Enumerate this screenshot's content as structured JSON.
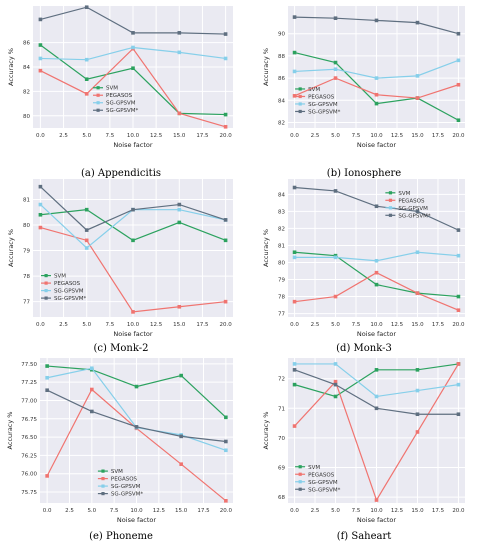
{
  "colors": {
    "SVM": "#2ca25f",
    "PEGASOS": "#f07470",
    "SG-GPSVM": "#86cfea",
    "SG-GPSVM*": "#5f6f80",
    "plot_bg": "#eaeaf2",
    "grid": "#ffffff"
  },
  "chart_data": [
    {
      "type": "line",
      "caption": "(a) Appendicitis",
      "xlabel": "Noise factor",
      "ylabel": "Accuracy %",
      "x": [
        0.0,
        5.0,
        10.0,
        15.0,
        20.0
      ],
      "xticks": [
        "0.0",
        "2.5",
        "5.0",
        "7.5",
        "10.0",
        "12.5",
        "15.0",
        "17.5",
        "20.0"
      ],
      "yticks": [
        "80",
        "82",
        "84",
        "86"
      ],
      "ylim": [
        79.0,
        89.0
      ],
      "legend": "center",
      "series": [
        {
          "name": "SVM",
          "values": [
            85.8,
            83.0,
            83.9,
            80.2,
            80.1
          ]
        },
        {
          "name": "PEGASOS",
          "values": [
            83.7,
            81.8,
            85.5,
            80.2,
            79.1
          ]
        },
        {
          "name": "SG-GPSVM",
          "values": [
            84.7,
            84.6,
            85.6,
            85.2,
            84.7
          ]
        },
        {
          "name": "SG-GPSVM*",
          "values": [
            87.9,
            88.9,
            86.8,
            86.8,
            86.7
          ]
        }
      ]
    },
    {
      "type": "line",
      "caption": "(b) Ionosphere",
      "xlabel": "Noise factor",
      "ylabel": "Accuracy %",
      "x": [
        0.0,
        5.0,
        10.0,
        15.0,
        20.0
      ],
      "xticks": [
        "0.0",
        "2.5",
        "5.0",
        "7.5",
        "10.0",
        "12.5",
        "15.0",
        "17.5",
        "20.0"
      ],
      "yticks": [
        "82",
        "84",
        "86",
        "88",
        "90"
      ],
      "ylim": [
        81.5,
        92.5
      ],
      "legend": "lower-left",
      "series": [
        {
          "name": "SVM",
          "values": [
            88.3,
            87.4,
            83.7,
            84.2,
            82.2
          ]
        },
        {
          "name": "PEGASOS",
          "values": [
            84.4,
            86.0,
            84.5,
            84.2,
            85.4
          ]
        },
        {
          "name": "SG-GPSVM",
          "values": [
            86.6,
            86.8,
            86.0,
            86.2,
            87.6
          ]
        },
        {
          "name": "SG-GPSVM*",
          "values": [
            91.5,
            91.4,
            91.2,
            91.0,
            90.0
          ]
        }
      ]
    },
    {
      "type": "line",
      "caption": "(c) Monk-2",
      "xlabel": "Noise factor",
      "ylabel": "Accuracy %",
      "x": [
        0.0,
        5.0,
        10.0,
        15.0,
        20.0
      ],
      "xticks": [
        "0.0",
        "2.5",
        "5.0",
        "7.5",
        "10.0",
        "12.5",
        "15.0",
        "17.5",
        "20.0"
      ],
      "yticks": [
        "77",
        "78",
        "79",
        "80",
        "81"
      ],
      "ylim": [
        76.4,
        81.8
      ],
      "legend": "lower-left",
      "series": [
        {
          "name": "SVM",
          "values": [
            80.4,
            80.6,
            79.4,
            80.1,
            79.4
          ]
        },
        {
          "name": "PEGASOS",
          "values": [
            79.9,
            79.4,
            76.6,
            76.8,
            77.0
          ]
        },
        {
          "name": "SG-GPSVM",
          "values": [
            80.8,
            79.1,
            80.6,
            80.6,
            80.2
          ]
        },
        {
          "name": "SG-GPSVM*",
          "values": [
            81.5,
            79.8,
            80.6,
            80.8,
            80.2
          ]
        }
      ]
    },
    {
      "type": "line",
      "caption": "(d) Monk-3",
      "xlabel": "Noise factor",
      "ylabel": "Accuracy %",
      "x": [
        0.0,
        5.0,
        10.0,
        15.0,
        20.0
      ],
      "xticks": [
        "0.0",
        "2.5",
        "5.0",
        "7.5",
        "10.0",
        "12.5",
        "15.0",
        "17.5",
        "20.0"
      ],
      "yticks": [
        "77",
        "78",
        "79",
        "80",
        "81",
        "82",
        "83",
        "84"
      ],
      "ylim": [
        76.8,
        84.9
      ],
      "legend": "upper-right",
      "series": [
        {
          "name": "SVM",
          "values": [
            80.6,
            80.4,
            78.7,
            78.2,
            78.0
          ]
        },
        {
          "name": "PEGASOS",
          "values": [
            77.7,
            78.0,
            79.4,
            78.2,
            77.2
          ]
        },
        {
          "name": "SG-GPSVM",
          "values": [
            80.3,
            80.3,
            80.1,
            80.6,
            80.4
          ]
        },
        {
          "name": "SG-GPSVM*",
          "values": [
            84.4,
            84.2,
            83.3,
            83.0,
            81.9
          ]
        }
      ]
    },
    {
      "type": "line",
      "caption": "(e) Phoneme",
      "xlabel": "Noise factor",
      "ylabel": "Accuracy %",
      "x": [
        0.0,
        5.0,
        10.0,
        15.0,
        20.0
      ],
      "xticks": [
        "0.0",
        "2.5",
        "5.0",
        "7.5",
        "10.0",
        "12.5",
        "15.0",
        "17.5",
        "20.0"
      ],
      "yticks": [
        "75.75",
        "76.00",
        "76.25",
        "76.50",
        "76.75",
        "77.00",
        "77.25",
        "77.50"
      ],
      "ylim": [
        75.6,
        77.58
      ],
      "legend": "lower-center",
      "series": [
        {
          "name": "SVM",
          "values": [
            77.47,
            77.42,
            77.19,
            77.34,
            76.77
          ]
        },
        {
          "name": "PEGASOS",
          "values": [
            75.97,
            77.15,
            76.62,
            76.13,
            75.63
          ]
        },
        {
          "name": "SG-GPSVM",
          "values": [
            77.31,
            77.44,
            76.63,
            76.53,
            76.32
          ]
        },
        {
          "name": "SG-GPSVM*",
          "values": [
            77.14,
            76.85,
            76.64,
            76.51,
            76.44
          ]
        }
      ]
    },
    {
      "type": "line",
      "caption": "(f) Saheart",
      "xlabel": "Noise factor",
      "ylabel": "Accuracy %",
      "x": [
        0.0,
        5.0,
        10.0,
        15.0,
        20.0
      ],
      "xticks": [
        "0.0",
        "2.5",
        "5.0",
        "7.5",
        "10.0",
        "12.5",
        "15.0",
        "17.5",
        "20.0"
      ],
      "yticks": [
        "68",
        "69",
        "70",
        "71",
        "72"
      ],
      "ylim": [
        67.8,
        72.7
      ],
      "legend": "lower-left",
      "series": [
        {
          "name": "SVM",
          "values": [
            71.8,
            71.4,
            72.3,
            72.3,
            72.5
          ]
        },
        {
          "name": "PEGASOS",
          "values": [
            70.4,
            71.9,
            67.9,
            70.2,
            72.5
          ]
        },
        {
          "name": "SG-GPSVM",
          "values": [
            72.5,
            72.5,
            71.4,
            71.6,
            71.8
          ]
        },
        {
          "name": "SG-GPSVM*",
          "values": [
            72.3,
            71.8,
            71.0,
            70.8,
            70.8
          ]
        }
      ]
    }
  ]
}
